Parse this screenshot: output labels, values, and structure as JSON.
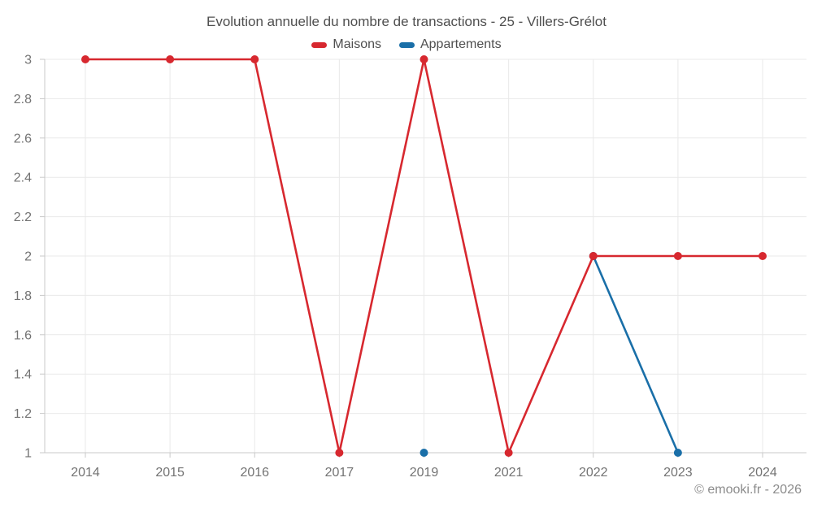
{
  "chart_data": {
    "type": "line",
    "title": "Evolution annuelle du nombre de transactions - 25 - Villers-Grélot",
    "categories": [
      "2014",
      "2015",
      "2016",
      "2017",
      "2019",
      "2021",
      "2022",
      "2023",
      "2024"
    ],
    "series": [
      {
        "name": "Maisons",
        "color": "#d7282f",
        "values": [
          3,
          3,
          3,
          1,
          3,
          1,
          2,
          2,
          2
        ]
      },
      {
        "name": "Appartements",
        "color": "#1a6fa8",
        "values": [
          null,
          null,
          null,
          null,
          1,
          null,
          2,
          1,
          null
        ]
      }
    ],
    "xlabel": "",
    "ylabel": "",
    "ylim": [
      1,
      3
    ],
    "yticks": [
      1,
      1.2,
      1.4,
      1.6,
      1.8,
      2,
      2.2,
      2.4,
      2.6,
      2.8,
      3
    ],
    "grid": true,
    "legend_position": "top-center",
    "marker": "circle"
  },
  "footer": {
    "credit": "© emooki.fr - 2026"
  },
  "colors": {
    "grid": "#e9e9e9",
    "axis": "#c9c9c9",
    "tick_label": "#737373",
    "title_text": "#4f4f4f",
    "footer_text": "#8c8c8c",
    "background": "#ffffff"
  }
}
